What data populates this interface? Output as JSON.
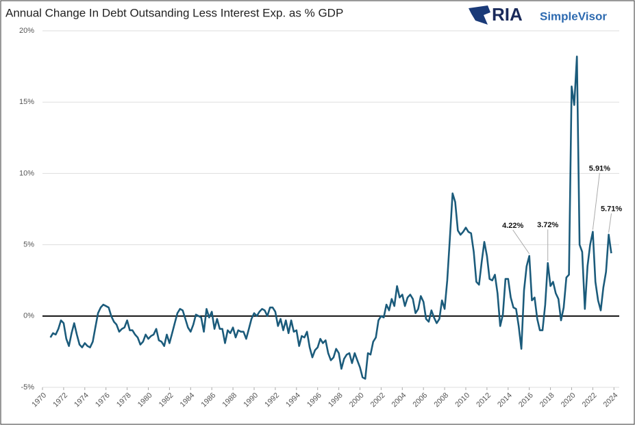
{
  "chart_data": {
    "type": "line",
    "title": "Annual Change In Debt Outsanding Less Interest Exp. as % GDP",
    "x": [
      1970.75,
      1971,
      1971.25,
      1971.5,
      1971.75,
      1972,
      1972.25,
      1972.5,
      1972.75,
      1973,
      1973.25,
      1973.5,
      1973.75,
      1974,
      1974.25,
      1974.5,
      1974.75,
      1975,
      1975.25,
      1975.5,
      1975.75,
      1976,
      1976.25,
      1976.5,
      1976.75,
      1977,
      1977.25,
      1977.5,
      1977.75,
      1978,
      1978.25,
      1978.5,
      1978.75,
      1979,
      1979.25,
      1979.5,
      1979.75,
      1980,
      1980.25,
      1980.5,
      1980.75,
      1981,
      1981.25,
      1981.5,
      1981.75,
      1982,
      1982.25,
      1982.5,
      1982.75,
      1983,
      1983.25,
      1983.5,
      1983.75,
      1984,
      1984.25,
      1984.5,
      1984.75,
      1985,
      1985.25,
      1985.5,
      1985.75,
      1986,
      1986.25,
      1986.5,
      1986.75,
      1987,
      1987.25,
      1987.5,
      1987.75,
      1988,
      1988.25,
      1988.5,
      1988.75,
      1989,
      1989.25,
      1989.5,
      1989.75,
      1990,
      1990.25,
      1990.5,
      1990.75,
      1991,
      1991.25,
      1991.5,
      1991.75,
      1992,
      1992.25,
      1992.5,
      1992.75,
      1993,
      1993.25,
      1993.5,
      1993.75,
      1994,
      1994.25,
      1994.5,
      1994.75,
      1995,
      1995.25,
      1995.5,
      1995.75,
      1996,
      1996.25,
      1996.5,
      1996.75,
      1997,
      1997.25,
      1997.5,
      1997.75,
      1998,
      1998.25,
      1998.5,
      1998.75,
      1999,
      1999.25,
      1999.5,
      1999.75,
      2000,
      2000.25,
      2000.5,
      2000.75,
      2001,
      2001.25,
      2001.5,
      2001.75,
      2002,
      2002.25,
      2002.5,
      2002.75,
      2003,
      2003.25,
      2003.5,
      2003.75,
      2004,
      2004.25,
      2004.5,
      2004.75,
      2005,
      2005.25,
      2005.5,
      2005.75,
      2006,
      2006.25,
      2006.5,
      2006.75,
      2007,
      2007.25,
      2007.5,
      2007.75,
      2008,
      2008.25,
      2008.5,
      2008.75,
      2009,
      2009.25,
      2009.5,
      2009.75,
      2010,
      2010.25,
      2010.5,
      2010.75,
      2011,
      2011.25,
      2011.5,
      2011.75,
      2012,
      2012.25,
      2012.5,
      2012.75,
      2013,
      2013.25,
      2013.5,
      2013.75,
      2014,
      2014.25,
      2014.5,
      2014.75,
      2015,
      2015.25,
      2015.5,
      2015.75,
      2016,
      2016.25,
      2016.5,
      2016.75,
      2017,
      2017.25,
      2017.5,
      2017.75,
      2018,
      2018.25,
      2018.5,
      2018.75,
      2019,
      2019.25,
      2019.5,
      2019.75,
      2020,
      2020.25,
      2020.5,
      2020.75,
      2021,
      2021.25,
      2021.5,
      2021.75,
      2022,
      2022.25,
      2022.5,
      2022.75,
      2023,
      2023.25,
      2023.5,
      2023.75
    ],
    "series": [
      {
        "color": "#1b5b7b",
        "values": [
          -1.5,
          -1.2,
          -1.3,
          -0.9,
          -0.3,
          -0.5,
          -1.6,
          -2.1,
          -1.2,
          -0.5,
          -1.3,
          -2.0,
          -2.2,
          -1.9,
          -2.1,
          -2.2,
          -1.8,
          -0.8,
          0.2,
          0.6,
          0.8,
          0.7,
          0.6,
          0.0,
          -0.4,
          -0.6,
          -1.1,
          -0.9,
          -0.8,
          -0.3,
          -1.0,
          -1.0,
          -1.3,
          -1.5,
          -2.0,
          -1.8,
          -1.3,
          -1.6,
          -1.4,
          -1.3,
          -0.9,
          -1.7,
          -1.8,
          -2.1,
          -1.3,
          -1.9,
          -1.2,
          -0.5,
          0.2,
          0.5,
          0.4,
          -0.2,
          -0.8,
          -1.1,
          -0.6,
          0.1,
          0.0,
          -0.1,
          -1.1,
          0.5,
          -0.1,
          0.3,
          -0.9,
          -0.2,
          -0.9,
          -0.9,
          -1.9,
          -1.0,
          -1.2,
          -0.8,
          -1.5,
          -1.0,
          -1.1,
          -1.1,
          -1.6,
          -0.9,
          -0.2,
          0.2,
          0.0,
          0.3,
          0.5,
          0.4,
          0.0,
          0.6,
          0.6,
          0.3,
          -0.7,
          -0.2,
          -1.0,
          -0.3,
          -1.2,
          -0.3,
          -1.1,
          -1.0,
          -2.1,
          -1.4,
          -1.5,
          -1.1,
          -2.2,
          -2.9,
          -2.4,
          -2.2,
          -1.6,
          -1.9,
          -1.7,
          -2.6,
          -3.1,
          -2.9,
          -2.3,
          -2.6,
          -3.7,
          -3.0,
          -2.7,
          -2.6,
          -3.3,
          -2.6,
          -3.1,
          -3.6,
          -4.3,
          -4.4,
          -2.6,
          -2.7,
          -1.8,
          -1.5,
          -0.3,
          0.0,
          -0.1,
          0.8,
          0.4,
          1.2,
          0.7,
          2.1,
          1.3,
          1.5,
          0.7,
          1.3,
          1.5,
          1.2,
          0.2,
          0.5,
          1.4,
          1.0,
          -0.2,
          -0.4,
          0.4,
          -0.1,
          -0.5,
          -0.2,
          1.1,
          0.5,
          2.5,
          5.5,
          8.6,
          8.0,
          6.0,
          5.7,
          5.9,
          6.2,
          5.9,
          5.8,
          4.5,
          2.4,
          2.2,
          3.8,
          5.2,
          4.2,
          2.6,
          2.5,
          2.9,
          1.6,
          -0.7,
          0.1,
          2.6,
          2.6,
          1.3,
          0.6,
          0.5,
          -0.7,
          -2.3,
          1.8,
          3.5,
          4.22,
          1.1,
          1.3,
          -0.2,
          -1.0,
          -1.0,
          0.8,
          3.72,
          2.1,
          2.4,
          1.6,
          1.2,
          -0.3,
          0.6,
          2.7,
          2.9,
          16.1,
          14.8,
          18.2,
          5.0,
          4.5,
          0.5,
          3.5,
          5.0,
          5.91,
          2.4,
          1.1,
          0.4,
          2.0,
          3.1,
          5.71,
          4.4
        ]
      }
    ],
    "annotations": [
      {
        "text": "4.22%",
        "x": 2016,
        "value": 4.22
      },
      {
        "text": "3.72%",
        "x": 2017.75,
        "value": 3.72
      },
      {
        "text": "5.91%",
        "x": 2022,
        "value": 5.91
      },
      {
        "text": "5.71%",
        "x": 2023.5,
        "value": 5.71
      }
    ],
    "xlim": [
      1970,
      2024.5
    ],
    "xticks": [
      1970,
      1972,
      1974,
      1976,
      1978,
      1980,
      1982,
      1984,
      1986,
      1988,
      1990,
      1992,
      1994,
      1996,
      1998,
      2000,
      2002,
      2004,
      2006,
      2008,
      2010,
      2012,
      2014,
      2016,
      2018,
      2020,
      2022,
      2024
    ],
    "ylim": [
      -5,
      20
    ],
    "yticks": [
      {
        "value": -5,
        "label": "-5%"
      },
      {
        "value": 0,
        "label": "0%"
      },
      {
        "value": 5,
        "label": "5%"
      },
      {
        "value": 10,
        "label": "10%"
      },
      {
        "value": 15,
        "label": "15%"
      },
      {
        "value": 20,
        "label": "20%"
      }
    ],
    "grid": true
  },
  "logo": {
    "brand": "RIA",
    "product": "SimpleVisor"
  }
}
